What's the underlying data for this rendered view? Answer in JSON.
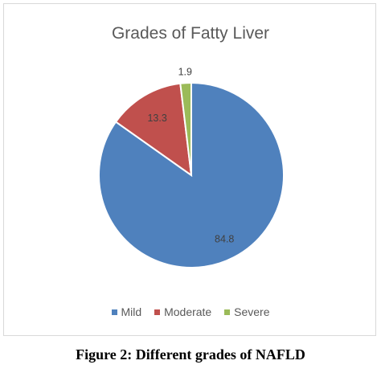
{
  "chart_data": {
    "type": "pie",
    "title": "Grades of Fatty Liver",
    "categories": [
      "Mild",
      "Moderate",
      "Severe"
    ],
    "values": [
      84.8,
      13.3,
      1.9
    ],
    "data_labels": [
      "84.8",
      "13.3",
      "1.9"
    ],
    "colors": [
      "#4f81bd",
      "#c0504d",
      "#9bbb59"
    ],
    "legend_position": "bottom"
  },
  "caption": "Figure 2: Different grades of NAFLD"
}
